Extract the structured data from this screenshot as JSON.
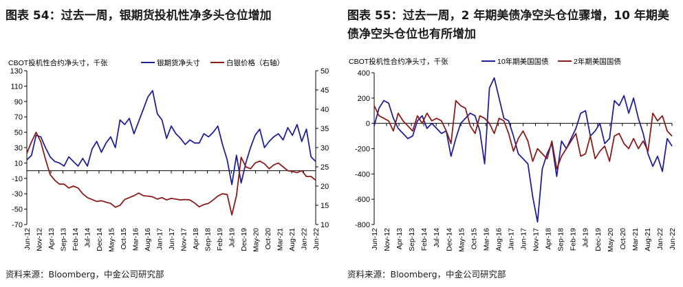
{
  "colors": {
    "navy": "#1f1f99",
    "maroon": "#8b1a1a",
    "axis": "#000000"
  },
  "charts": [
    {
      "title": "图表 54：过去一周，银期货投机性净多头仓位增加",
      "source": "资料来源：Bloomberg，中金公司研究部",
      "unit_label": "CBOT投机性合约净头寸，千张",
      "chart_data": {
        "type": "line",
        "x_ticks": [
          "Jun-12",
          "Nov-12",
          "Apr-13",
          "Sep-13",
          "Feb-14",
          "Jul-14",
          "Dec-14",
          "May-15",
          "Oct-15",
          "Mar-16",
          "Aug-16",
          "Jan-17",
          "Jun-17",
          "Nov-17",
          "Apr-18",
          "Sep-18",
          "Feb-19",
          "Jul-19",
          "Dec-19",
          "May-20",
          "Oct-20",
          "Mar-21",
          "Aug-21",
          "Jan-22",
          "Jun-22"
        ],
        "ylim": [
          -70,
          130
        ],
        "y_ticks": [
          130,
          110,
          90,
          70,
          50,
          30,
          10,
          -10,
          -30,
          -50,
          -70
        ],
        "y2lim": [
          10,
          50
        ],
        "y2_ticks": [
          50,
          45,
          40,
          35,
          30,
          25,
          20,
          15,
          10
        ],
        "series": [
          {
            "name": "银期货净头寸",
            "axis": "left",
            "color": "#1f1f99",
            "values": [
              14,
              20,
              46,
              44,
              30,
              18,
              12,
              10,
              6,
              18,
              12,
              6,
              16,
              6,
              28,
              38,
              24,
              36,
              44,
              30,
              66,
              60,
              68,
              48,
              64,
              80,
              96,
              104,
              74,
              66,
              42,
              58,
              48,
              42,
              34,
              40,
              36,
              36,
              48,
              44,
              50,
              58,
              34,
              14,
              -18,
              20,
              -16,
              10,
              30,
              46,
              54,
              30,
              38,
              44,
              48,
              40,
              56,
              46,
              60,
              38,
              54,
              18,
              12
            ]
          },
          {
            "name": "白银价格（右轴）",
            "axis": "right",
            "color": "#8b1a1a",
            "values": [
              28.5,
              31.5,
              34,
              31.5,
              27,
              23,
              21.5,
              20.5,
              20.5,
              19.5,
              20,
              19.5,
              18,
              17,
              16.5,
              16,
              16.2,
              15.8,
              15.5,
              14.5,
              15,
              16.5,
              17,
              17.5,
              18.2,
              17.5,
              17.4,
              17.2,
              16.6,
              17,
              16.4,
              16.8,
              16.6,
              16.4,
              16.5,
              16.4,
              15.6,
              14.6,
              15.2,
              15.5,
              16.4,
              17.4,
              18,
              17.8,
              12.5,
              17.5,
              27.5,
              25,
              24.5,
              26,
              26.5,
              25.8,
              24.5,
              25.5,
              26,
              25,
              24,
              23.8,
              23.5,
              24,
              22.5,
              22.5,
              21.5
            ]
          }
        ]
      }
    },
    {
      "title": "图表 55：过去一周，2 年期美债净空头仓位骤增，10 年期美债净空头仓位也有所增加",
      "source": "资料来源：Bloomberg，中金公司研究部",
      "unit_label": "CBOT投机性合约净头寸，千张",
      "chart_data": {
        "type": "line",
        "x_ticks": [
          "Jun-12",
          "Nov-12",
          "Apr-13",
          "Sep-13",
          "Feb-14",
          "Jul-14",
          "Dec-14",
          "May-15",
          "Oct-15",
          "Mar-16",
          "Aug-16",
          "Jan-17",
          "Jun-17",
          "Nov-17",
          "Apr-18",
          "Sep-18",
          "Feb-19",
          "Jul-19",
          "Dec-19",
          "May-20",
          "Oct-20",
          "Mar-21",
          "Aug-21",
          "Jan-22",
          "Jun-22"
        ],
        "ylim": [
          -800,
          400
        ],
        "y_ticks": [
          400,
          200,
          0,
          -200,
          -400,
          -600,
          -800
        ],
        "series": [
          {
            "name": "10年期美国国债",
            "color": "#1f1f99",
            "values": [
              -20,
              120,
              180,
              160,
              40,
              -40,
              -80,
              -120,
              -100,
              20,
              60,
              -40,
              0,
              -40,
              -80,
              -60,
              -260,
              -120,
              0,
              40,
              80,
              60,
              -60,
              -320,
              280,
              360,
              200,
              40,
              20,
              -100,
              -240,
              -280,
              -320,
              -580,
              -780,
              -360,
              -240,
              -160,
              -420,
              -140,
              -200,
              -120,
              -40,
              80,
              100,
              -100,
              -60,
              0,
              -160,
              -120,
              180,
              140,
              220,
              80,
              200,
              40,
              -80,
              -240,
              -340,
              -260,
              -380,
              -120,
              -180
            ]
          },
          {
            "name": "2年期美国国债",
            "color": "#8b1a1a",
            "values": [
              140,
              60,
              40,
              20,
              -60,
              80,
              20,
              -20,
              -60,
              60,
              0,
              80,
              20,
              40,
              20,
              -60,
              -160,
              180,
              140,
              120,
              -20,
              -80,
              60,
              40,
              0,
              -80,
              40,
              20,
              -80,
              -220,
              -120,
              -60,
              -140,
              -300,
              -200,
              -240,
              -280,
              -140,
              -360,
              -260,
              -200,
              -140,
              -80,
              -260,
              -240,
              -100,
              -280,
              -220,
              -180,
              -300,
              -100,
              -80,
              -160,
              -200,
              -120,
              -200,
              -140,
              -220,
              80,
              20,
              60,
              -60,
              -100
            ]
          }
        ]
      }
    }
  ]
}
